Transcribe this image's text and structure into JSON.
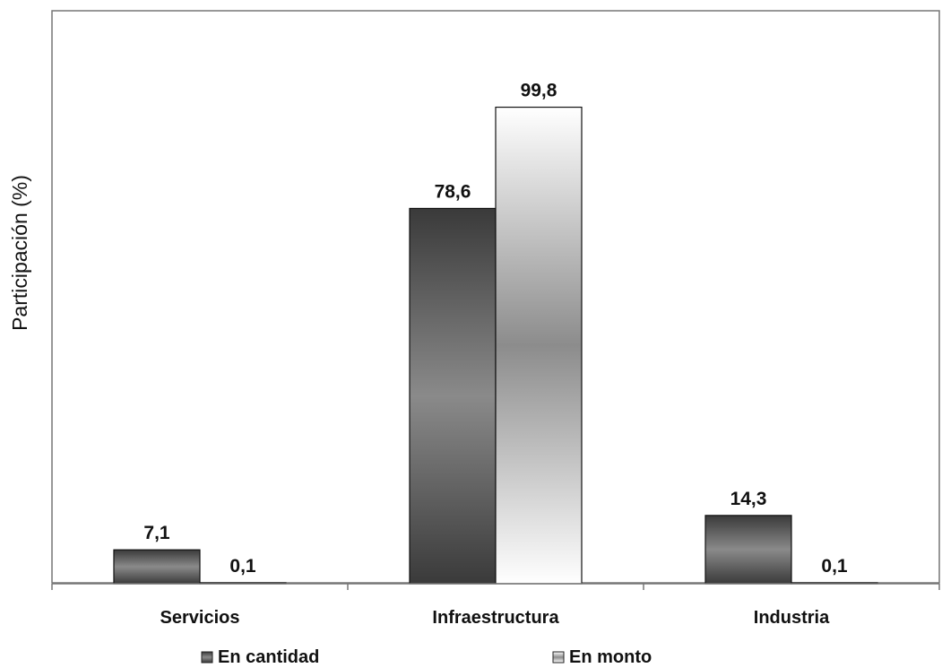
{
  "chart_data": {
    "type": "bar",
    "categories": [
      "Servicios",
      "Infraestructura",
      "Industria"
    ],
    "series": [
      {
        "name": "En cantidad",
        "values": [
          7.1,
          78.6,
          14.3
        ],
        "labels": [
          "7,1",
          "78,6",
          "14,3"
        ]
      },
      {
        "name": "En monto",
        "values": [
          0.1,
          99.8,
          0.1
        ],
        "labels": [
          "0,1",
          "99,8",
          "0,1"
        ]
      }
    ],
    "xlabel": "",
    "ylabel": "Participación (%)",
    "ylim": [
      0,
      120
    ],
    "grid": false,
    "legend_position": "bottom"
  },
  "colors": {
    "series_dark_edge": "#3a3a3a",
    "series_dark_mid": "#8a8a8a",
    "series_light_edge": "#ffffff",
    "series_light_mid": "#8c8c8c",
    "axis": "#777777"
  }
}
